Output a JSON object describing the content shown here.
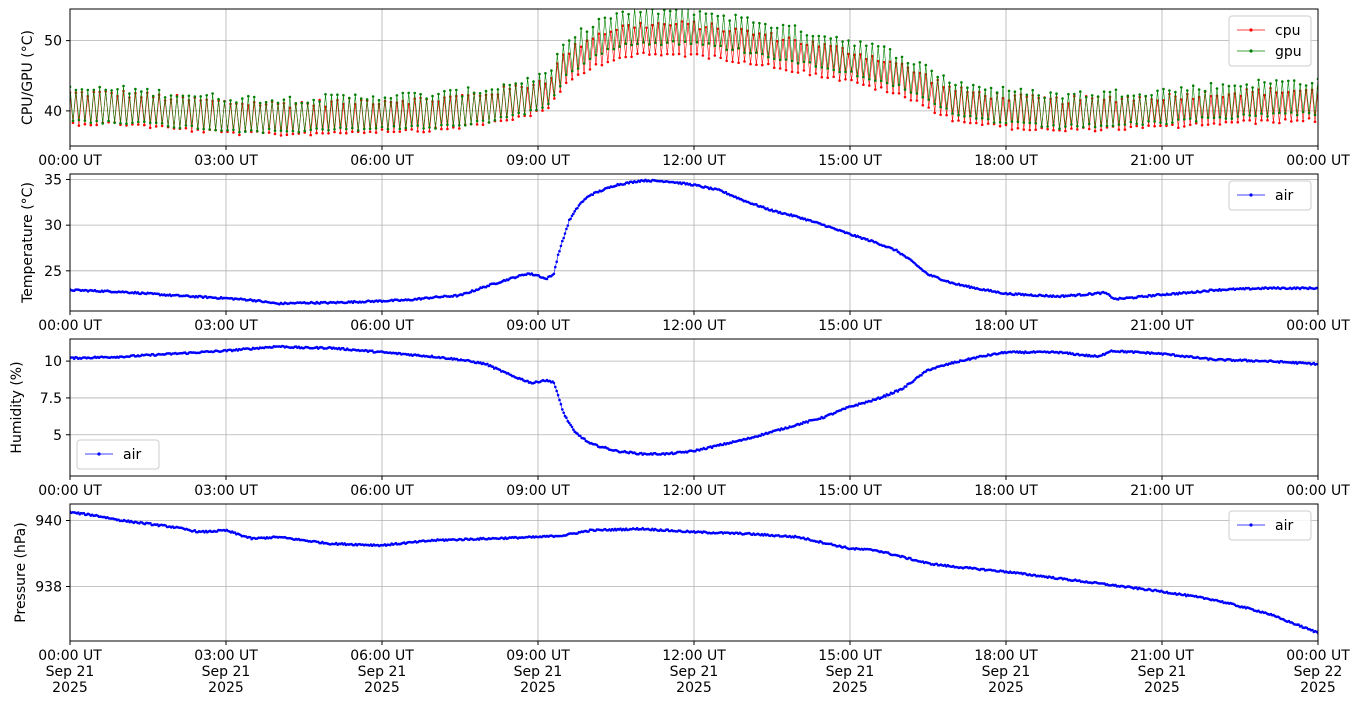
{
  "chart_data": [
    {
      "type": "line",
      "ylabel": "CPU/GPU (°C)",
      "xlabel": "",
      "x_ticks": [
        "00:00 UT",
        "03:00 UT",
        "06:00 UT",
        "09:00 UT",
        "12:00 UT",
        "15:00 UT",
        "18:00 UT",
        "21:00 UT",
        "00:00 UT"
      ],
      "y_ticks": [
        40,
        50
      ],
      "ylim": [
        35,
        54.5
      ],
      "xlim_hours": [
        0,
        24
      ],
      "grid": true,
      "legend_position": "upper-right",
      "series": [
        {
          "name": "cpu",
          "color": "#ff0000",
          "baseline": [
            [
              0,
              38.5
            ],
            [
              1,
              38.5
            ],
            [
              2,
              37.8
            ],
            [
              3,
              37.2
            ],
            [
              4,
              37.0
            ],
            [
              5,
              37.2
            ],
            [
              6,
              37.5
            ],
            [
              7,
              37.6
            ],
            [
              8,
              38.5
            ],
            [
              8.7,
              39.5
            ],
            [
              9.2,
              40.5
            ],
            [
              9.5,
              44.0
            ],
            [
              10.0,
              46.5
            ],
            [
              10.5,
              47.8
            ],
            [
              11.0,
              48.3
            ],
            [
              12.0,
              48.3
            ],
            [
              13.0,
              47.3
            ],
            [
              14.0,
              46.0
            ],
            [
              15.0,
              44.5
            ],
            [
              15.8,
              43.0
            ],
            [
              16.3,
              41.5
            ],
            [
              17.0,
              39.0
            ],
            [
              18.0,
              38.0
            ],
            [
              19.0,
              37.5
            ],
            [
              20.0,
              37.8
            ],
            [
              21.0,
              38.0
            ],
            [
              22.0,
              38.5
            ],
            [
              23.0,
              38.8
            ],
            [
              24,
              39.0
            ]
          ],
          "amplitude": 4.5
        },
        {
          "name": "gpu",
          "color": "#007f00",
          "baseline": [
            [
              0,
              38.8
            ],
            [
              1,
              38.8
            ],
            [
              2,
              38.2
            ],
            [
              3,
              37.6
            ],
            [
              4,
              37.4
            ],
            [
              5,
              37.6
            ],
            [
              6,
              37.9
            ],
            [
              7,
              38.0
            ],
            [
              8,
              38.8
            ],
            [
              8.7,
              40.0
            ],
            [
              9.2,
              41.0
            ],
            [
              9.5,
              45.0
            ],
            [
              10.0,
              48.0
            ],
            [
              10.5,
              49.5
            ],
            [
              11.0,
              50.0
            ],
            [
              12.0,
              50.0
            ],
            [
              13.0,
              48.8
            ],
            [
              14.0,
              47.3
            ],
            [
              15.0,
              45.8
            ],
            [
              15.8,
              44.2
            ],
            [
              16.3,
              42.5
            ],
            [
              17.0,
              39.8
            ],
            [
              18.0,
              38.6
            ],
            [
              19.0,
              38.0
            ],
            [
              20.0,
              38.3
            ],
            [
              21.0,
              38.6
            ],
            [
              22.0,
              39.3
            ],
            [
              23.0,
              39.8
            ],
            [
              24,
              40.0
            ]
          ],
          "amplitude": 4.8
        }
      ]
    },
    {
      "type": "line",
      "ylabel": "Temperature (°C)",
      "xlabel": "",
      "x_ticks": [
        "00:00 UT",
        "03:00 UT",
        "06:00 UT",
        "09:00 UT",
        "12:00 UT",
        "15:00 UT",
        "18:00 UT",
        "21:00 UT",
        "00:00 UT"
      ],
      "y_ticks": [
        25,
        30,
        35
      ],
      "ylim": [
        20.6,
        35.6
      ],
      "xlim_hours": [
        0,
        24
      ],
      "grid": true,
      "legend_position": "upper-right",
      "series": [
        {
          "name": "air",
          "color": "#0000ff",
          "points": [
            [
              0,
              22.9
            ],
            [
              1,
              22.7
            ],
            [
              2,
              22.3
            ],
            [
              3,
              22.0
            ],
            [
              3.5,
              21.8
            ],
            [
              4.0,
              21.4
            ],
            [
              4.5,
              21.5
            ],
            [
              5,
              21.5
            ],
            [
              6,
              21.7
            ],
            [
              6.5,
              21.8
            ],
            [
              7,
              22.1
            ],
            [
              7.5,
              22.3
            ],
            [
              8,
              23.3
            ],
            [
              8.5,
              24.2
            ],
            [
              8.8,
              24.7
            ],
            [
              9.0,
              24.5
            ],
            [
              9.15,
              24.1
            ],
            [
              9.3,
              24.6
            ],
            [
              9.4,
              27.0
            ],
            [
              9.6,
              30.5
            ],
            [
              9.8,
              32.3
            ],
            [
              10.0,
              33.3
            ],
            [
              10.5,
              34.4
            ],
            [
              11.0,
              34.9
            ],
            [
              11.5,
              34.8
            ],
            [
              12.0,
              34.4
            ],
            [
              12.5,
              33.8
            ],
            [
              13.0,
              32.6
            ],
            [
              13.5,
              31.6
            ],
            [
              14.0,
              30.9
            ],
            [
              14.5,
              30.0
            ],
            [
              15.0,
              29.0
            ],
            [
              15.5,
              28.1
            ],
            [
              15.9,
              27.2
            ],
            [
              16.2,
              26.0
            ],
            [
              16.5,
              24.6
            ],
            [
              17.0,
              23.6
            ],
            [
              17.5,
              23.0
            ],
            [
              18.0,
              22.5
            ],
            [
              19.0,
              22.2
            ],
            [
              19.5,
              22.4
            ],
            [
              19.9,
              22.6
            ],
            [
              20.1,
              21.9
            ],
            [
              20.5,
              22.1
            ],
            [
              21.0,
              22.4
            ],
            [
              21.5,
              22.6
            ],
            [
              22.0,
              22.9
            ],
            [
              23.0,
              23.1
            ],
            [
              24,
              23.1
            ]
          ]
        }
      ]
    },
    {
      "type": "line",
      "ylabel": "Humidity (%)",
      "xlabel": "",
      "x_ticks": [
        "00:00 UT",
        "03:00 UT",
        "06:00 UT",
        "09:00 UT",
        "12:00 UT",
        "15:00 UT",
        "18:00 UT",
        "21:00 UT",
        "00:00 UT"
      ],
      "y_ticks": [
        5.0,
        7.5,
        10.0
      ],
      "ylim": [
        2.2,
        11.5
      ],
      "xlim_hours": [
        0,
        24
      ],
      "grid": true,
      "legend_position": "lower-left",
      "series": [
        {
          "name": "air",
          "color": "#0000ff",
          "points": [
            [
              0,
              10.2
            ],
            [
              1,
              10.3
            ],
            [
              2,
              10.5
            ],
            [
              3,
              10.7
            ],
            [
              4,
              11.0
            ],
            [
              4.5,
              10.9
            ],
            [
              5,
              10.9
            ],
            [
              6,
              10.6
            ],
            [
              7,
              10.3
            ],
            [
              7.5,
              10.1
            ],
            [
              8,
              9.8
            ],
            [
              8.5,
              9.0
            ],
            [
              8.9,
              8.5
            ],
            [
              9.1,
              8.7
            ],
            [
              9.3,
              8.6
            ],
            [
              9.5,
              6.4
            ],
            [
              9.7,
              5.2
            ],
            [
              10.0,
              4.4
            ],
            [
              10.5,
              3.9
            ],
            [
              11.0,
              3.7
            ],
            [
              11.5,
              3.7
            ],
            [
              12.0,
              3.9
            ],
            [
              12.5,
              4.3
            ],
            [
              13.0,
              4.7
            ],
            [
              13.5,
              5.2
            ],
            [
              14.0,
              5.7
            ],
            [
              14.5,
              6.2
            ],
            [
              15.0,
              6.9
            ],
            [
              15.5,
              7.4
            ],
            [
              16.0,
              8.1
            ],
            [
              16.5,
              9.4
            ],
            [
              17.0,
              9.9
            ],
            [
              17.5,
              10.3
            ],
            [
              18.0,
              10.6
            ],
            [
              19.0,
              10.6
            ],
            [
              19.5,
              10.4
            ],
            [
              19.8,
              10.3
            ],
            [
              20.0,
              10.7
            ],
            [
              21.0,
              10.5
            ],
            [
              22.0,
              10.1
            ],
            [
              23.0,
              10.0
            ],
            [
              24,
              9.8
            ]
          ]
        }
      ]
    },
    {
      "type": "line",
      "ylabel": "Pressure (hPa)",
      "xlabel": "",
      "x_ticks": [
        "00:00 UT\nSep 21\n2025",
        "03:00 UT\nSep 21\n2025",
        "06:00 UT\nSep 21\n2025",
        "09:00 UT\nSep 21\n2025",
        "12:00 UT\nSep 21\n2025",
        "15:00 UT\nSep 21\n2025",
        "18:00 UT\nSep 21\n2025",
        "21:00 UT\nSep 21\n2025",
        "00:00 UT\nSep 22\n2025"
      ],
      "y_ticks": [
        938,
        940
      ],
      "ylim": [
        936.35,
        940.5
      ],
      "xlim_hours": [
        0,
        24
      ],
      "grid": true,
      "legend_position": "upper-right",
      "series": [
        {
          "name": "air",
          "color": "#0000ff",
          "points": [
            [
              0,
              940.25
            ],
            [
              0.5,
              940.15
            ],
            [
              1,
              940.0
            ],
            [
              2,
              939.8
            ],
            [
              2.5,
              939.65
            ],
            [
              3,
              939.7
            ],
            [
              3.5,
              939.45
            ],
            [
              4,
              939.5
            ],
            [
              5,
              939.3
            ],
            [
              6,
              939.25
            ],
            [
              7,
              939.4
            ],
            [
              8,
              939.45
            ],
            [
              9,
              939.5
            ],
            [
              9.5,
              939.55
            ],
            [
              10,
              939.7
            ],
            [
              11,
              939.75
            ],
            [
              12,
              939.65
            ],
            [
              13,
              939.6
            ],
            [
              14,
              939.5
            ],
            [
              15,
              939.15
            ],
            [
              15.5,
              939.1
            ],
            [
              16,
              938.9
            ],
            [
              16.5,
              938.7
            ],
            [
              17,
              938.6
            ],
            [
              18,
              938.45
            ],
            [
              19,
              938.25
            ],
            [
              20,
              938.05
            ],
            [
              21,
              937.85
            ],
            [
              22,
              937.6
            ],
            [
              23,
              937.2
            ],
            [
              23.5,
              936.9
            ],
            [
              24,
              936.6
            ]
          ]
        }
      ]
    }
  ]
}
